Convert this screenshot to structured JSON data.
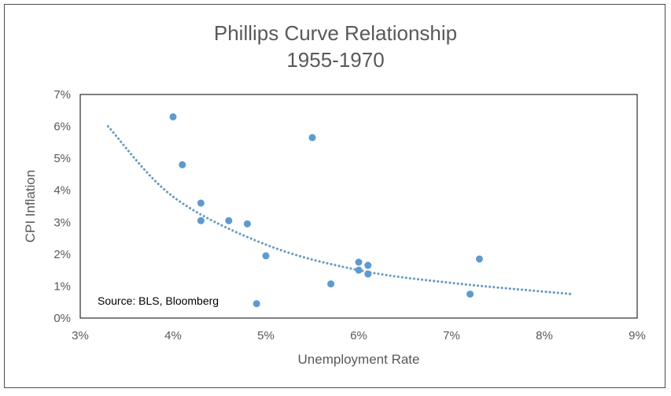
{
  "chart_data": {
    "type": "scatter",
    "title": "Phillips Curve Relationship",
    "subtitle": "1955-1970",
    "xlabel": "Unemployment Rate",
    "ylabel": "CPI Inflation",
    "xlim": [
      3,
      9
    ],
    "ylim": [
      0,
      7
    ],
    "x_ticks": [
      {
        "value": 3,
        "label": "3%"
      },
      {
        "value": 4,
        "label": "4%"
      },
      {
        "value": 5,
        "label": "5%"
      },
      {
        "value": 6,
        "label": "6%"
      },
      {
        "value": 7,
        "label": "7%"
      },
      {
        "value": 8,
        "label": "8%"
      },
      {
        "value": 9,
        "label": "9%"
      }
    ],
    "y_ticks": [
      {
        "value": 0,
        "label": "0%"
      },
      {
        "value": 1,
        "label": "1%"
      },
      {
        "value": 2,
        "label": "2%"
      },
      {
        "value": 3,
        "label": "3%"
      },
      {
        "value": 4,
        "label": "4%"
      },
      {
        "value": 5,
        "label": "5%"
      },
      {
        "value": 6,
        "label": "6%"
      },
      {
        "value": 7,
        "label": "7%"
      }
    ],
    "grid": false,
    "points": [
      {
        "x": 4.0,
        "y": 6.3
      },
      {
        "x": 4.1,
        "y": 4.8
      },
      {
        "x": 4.3,
        "y": 3.6
      },
      {
        "x": 4.3,
        "y": 3.05
      },
      {
        "x": 4.6,
        "y": 3.05
      },
      {
        "x": 4.8,
        "y": 2.95
      },
      {
        "x": 4.9,
        "y": 0.45
      },
      {
        "x": 5.0,
        "y": 1.95
      },
      {
        "x": 5.5,
        "y": 5.65
      },
      {
        "x": 5.7,
        "y": 1.07
      },
      {
        "x": 6.0,
        "y": 1.75
      },
      {
        "x": 6.0,
        "y": 1.5
      },
      {
        "x": 6.1,
        "y": 1.65
      },
      {
        "x": 6.1,
        "y": 1.38
      },
      {
        "x": 7.2,
        "y": 0.75
      },
      {
        "x": 7.3,
        "y": 1.85
      }
    ],
    "trendline": {
      "style": "dotted",
      "x_range": [
        3.3,
        8.3
      ],
      "points": [
        {
          "x": 3.3,
          "y": 6.0
        },
        {
          "x": 4.0,
          "y": 3.8
        },
        {
          "x": 5.0,
          "y": 2.3
        },
        {
          "x": 6.0,
          "y": 1.5
        },
        {
          "x": 7.0,
          "y": 1.1
        },
        {
          "x": 8.3,
          "y": 0.75
        }
      ]
    },
    "annotation": "Source: BLS, Bloomberg",
    "colors": {
      "points": "#5b9bd5",
      "trendline": "#5b9bd5",
      "axes": "#000000",
      "text": "#595959"
    }
  }
}
